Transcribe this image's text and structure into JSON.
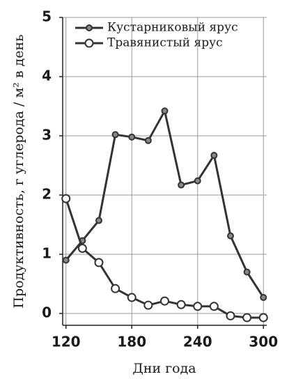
{
  "chart_data": {
    "type": "line",
    "xlabel": "Дни года",
    "ylabel": "Продуктивность, г углерода / м² в день",
    "x": [
      120,
      135,
      150,
      165,
      180,
      195,
      210,
      225,
      240,
      255,
      270,
      285,
      300
    ],
    "series": [
      {
        "name": "Кустарниковый ярус",
        "color": "#333333",
        "marker": "filled",
        "values": [
          0.9,
          1.23,
          1.57,
          3.02,
          2.98,
          2.92,
          3.42,
          2.17,
          2.24,
          2.67,
          1.31,
          0.7,
          0.27
        ]
      },
      {
        "name": "Травянистый ярус",
        "color": "#333333",
        "marker": "open",
        "values": [
          1.94,
          1.1,
          0.86,
          0.42,
          0.27,
          0.14,
          0.21,
          0.15,
          0.12,
          0.12,
          -0.04,
          -0.07,
          -0.07
        ]
      }
    ],
    "xlim": [
      117,
      303
    ],
    "ylim": [
      -0.2,
      5
    ],
    "xticks": [
      120,
      180,
      240,
      300
    ],
    "yticks": [
      0,
      1,
      2,
      3,
      4,
      5
    ],
    "grid": true,
    "legend": "top-right"
  }
}
